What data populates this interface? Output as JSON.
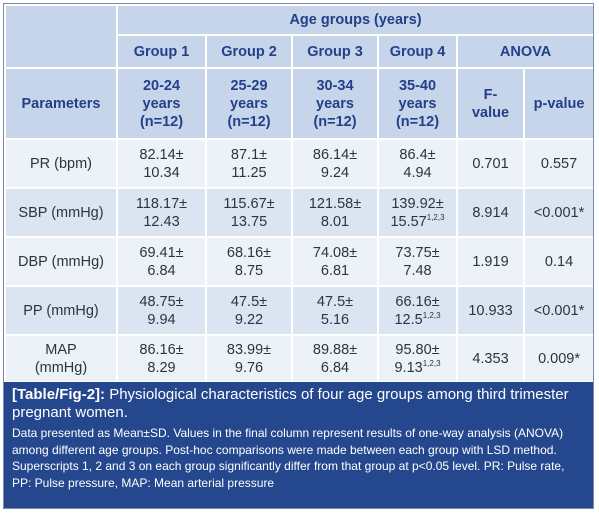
{
  "header": {
    "age_groups": "Age groups (years)",
    "group1": "Group 1",
    "group2": "Group 2",
    "group3": "Group 3",
    "group4": "Group 4",
    "anova": "ANOVA",
    "parameters": "Parameters",
    "g1_range": "20-24",
    "g2_range": "25-29",
    "g3_range": "30-34",
    "g4_range": "35-40",
    "years": "years",
    "n": "(n=12)",
    "f_value": "F-",
    "f_value2": "value",
    "p_value": "p-value"
  },
  "rows": [
    {
      "param": "PR (bpm)",
      "g1a": "82.14±",
      "g1b": "10.34",
      "g2a": "87.1±",
      "g2b": "11.25",
      "g3a": "86.14±",
      "g3b": "9.24",
      "g4a": "86.4±",
      "g4b": "4.94",
      "g4sup": "",
      "f": "0.701",
      "p": "0.557"
    },
    {
      "param": "SBP (mmHg)",
      "g1a": "118.17±",
      "g1b": "12.43",
      "g2a": "115.67±",
      "g2b": "13.75",
      "g3a": "121.58±",
      "g3b": "8.01",
      "g4a": "139.92±",
      "g4b": "15.57",
      "g4sup": "1,2,3",
      "f": "8.914",
      "p": "<0.001*"
    },
    {
      "param": "DBP (mmHg)",
      "g1a": "69.41±",
      "g1b": "6.84",
      "g2a": "68.16±",
      "g2b": "8.75",
      "g3a": "74.08±",
      "g3b": "6.81",
      "g4a": "73.75±",
      "g4b": "7.48",
      "g4sup": "",
      "f": "1.919",
      "p": "0.14"
    },
    {
      "param": "PP (mmHg)",
      "g1a": "48.75±",
      "g1b": "9.94",
      "g2a": "47.5±",
      "g2b": "9.22",
      "g3a": "47.5±",
      "g3b": "5.16",
      "g4a": "66.16±",
      "g4b": "12.5",
      "g4sup": "1,2,3",
      "f": "10.933",
      "p": "<0.001*"
    },
    {
      "param": "MAP",
      "param2": "(mmHg)",
      "g1a": "86.16±",
      "g1b": "8.29",
      "g2a": "83.99±",
      "g2b": "9.76",
      "g3a": "89.88±",
      "g3b": "6.84",
      "g4a": "95.80±",
      "g4b": "9.13",
      "g4sup": "1,2,3",
      "f": "4.353",
      "p": "0.009*"
    }
  ],
  "caption": {
    "label": "[Table/Fig-2]:",
    "title": " Physiological characteristics of four age groups among third trimester pregnant women.",
    "notes": "Data presented as Mean±SD. Values in the final column represent results of one-way analysis (ANOVA) among different age groups. Post-hoc comparisons were made between each group with LSD method. Superscripts 1, 2 and 3 on each group significantly differ from that group at p<0.05 level. PR: Pulse rate, PP: Pulse pressure, MAP: Mean arterial pressure"
  }
}
